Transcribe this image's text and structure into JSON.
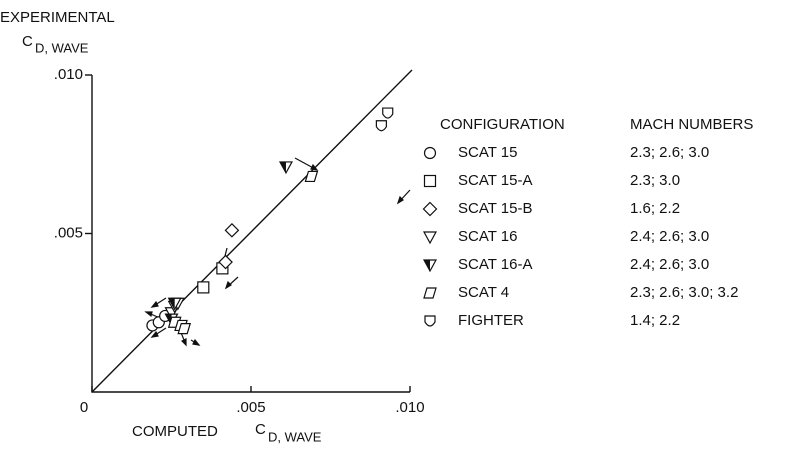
{
  "chart_data": {
    "type": "scatter",
    "ylabel": {
      "line1": "EXPERIMENTAL",
      "symbol": "C",
      "subscript": "D, WAVE"
    },
    "xlabel": {
      "line1": "COMPUTED",
      "symbol": "C",
      "subscript": "D, WAVE"
    },
    "xlim": [
      0,
      0.01
    ],
    "ylim": [
      0,
      0.01
    ],
    "xticks": [
      0,
      {
        "value": 0.005,
        "label": ".005"
      },
      {
        "value": 0.01,
        "label": ".010"
      }
    ],
    "yticks": [
      {
        "value": 0.005,
        "label": ".005"
      },
      {
        "value": 0.01,
        "label": ".010"
      }
    ],
    "legend_headers": [
      "CONFIGURATION",
      "MACH NUMBERS"
    ],
    "color": "#111111",
    "series": [
      {
        "name": "SCAT 15",
        "mach": "2.3; 2.6; 3.0",
        "marker": "circle",
        "x": [
          0.0019,
          0.0021,
          0.0023
        ],
        "values": [
          0.0021,
          0.0022,
          0.0024
        ]
      },
      {
        "name": "SCAT 15-A",
        "mach": "2.3; 3.0",
        "marker": "square",
        "x": [
          0.0035,
          0.0041
        ],
        "values": [
          0.0033,
          0.0039
        ]
      },
      {
        "name": "SCAT 15-B",
        "mach": "1.6; 2.2",
        "marker": "diamond",
        "x": [
          0.0042,
          0.0044
        ],
        "values": [
          0.0041,
          0.0051
        ]
      },
      {
        "name": "SCAT 16",
        "mach": "2.4; 2.6; 3.0",
        "marker": "tri",
        "x": [
          0.0025,
          0.0026,
          0.0027
        ],
        "values": [
          0.0025,
          0.0027,
          0.0028
        ]
      },
      {
        "name": "SCAT 16-A",
        "mach": "2.4; 2.6; 3.0",
        "marker": "trihalf",
        "x": [
          0.0025,
          0.0026,
          0.0061
        ],
        "values": [
          0.0023,
          0.0028,
          0.0071
        ]
      },
      {
        "name": "SCAT 4",
        "mach": "2.3; 2.6; 3.0; 3.2",
        "marker": "skew",
        "x": [
          0.0026,
          0.0028,
          0.0029,
          0.0069
        ],
        "values": [
          0.0022,
          0.0021,
          0.002,
          0.0068
        ]
      },
      {
        "name": "FIGHTER",
        "mach": "1.4; 2.2",
        "marker": "shield",
        "x": [
          0.0091,
          0.0093
        ],
        "values": [
          0.0084,
          0.0088
        ]
      }
    ]
  }
}
